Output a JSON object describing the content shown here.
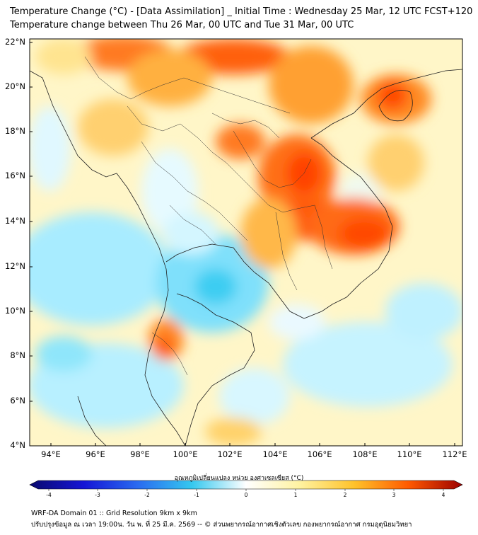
{
  "title_line1": "Temperature Change (°C) - [Data Assimilation] _ Initial Time : Wednesday 25 Mar, 12 UTC FCST+120",
  "title_line2": "Temperature change between Thu 26 Mar, 00 UTC and Tue 31 Mar, 00 UTC",
  "lat_labels": [
    "22°N",
    "20°N",
    "18°N",
    "16°N",
    "14°N",
    "12°N",
    "10°N",
    "8°N",
    "6°N",
    "4°N"
  ],
  "lon_labels": [
    "94°E",
    "96°E",
    "98°E",
    "100°E",
    "102°E",
    "104°E",
    "106°E",
    "108°E",
    "110°E",
    "112°E"
  ],
  "colorbar": {
    "label": "อุณหภูมิเปลี่ยนแปลง หน่วย องศาเซลเซียส (°C)",
    "ticks": [
      "-4",
      "-3",
      "-2",
      "-1",
      "0",
      "1",
      "2",
      "3",
      "4"
    ],
    "range": [
      -4,
      4
    ],
    "colors": [
      "#0a0a6e",
      "#1515d6",
      "#2a6bf0",
      "#35c8ef",
      "#ffffff",
      "#fff2a0",
      "#ffc22a",
      "#ff5a00",
      "#9c0000"
    ]
  },
  "footer_line1": "WRF-DA Domain 01 :: Grid Resolution 9km x 9km",
  "footer_line2": "ปรับปรุงข้อมูล ณ เวลา 19:00น. วัน พ. ที่ 25 มี.ค. 2569 -- © ส่วนพยากรณ์อากาศเชิงตัวเลข กองพยากรณ์อากาศ กรมอุตุนิยมวิทยา"
}
